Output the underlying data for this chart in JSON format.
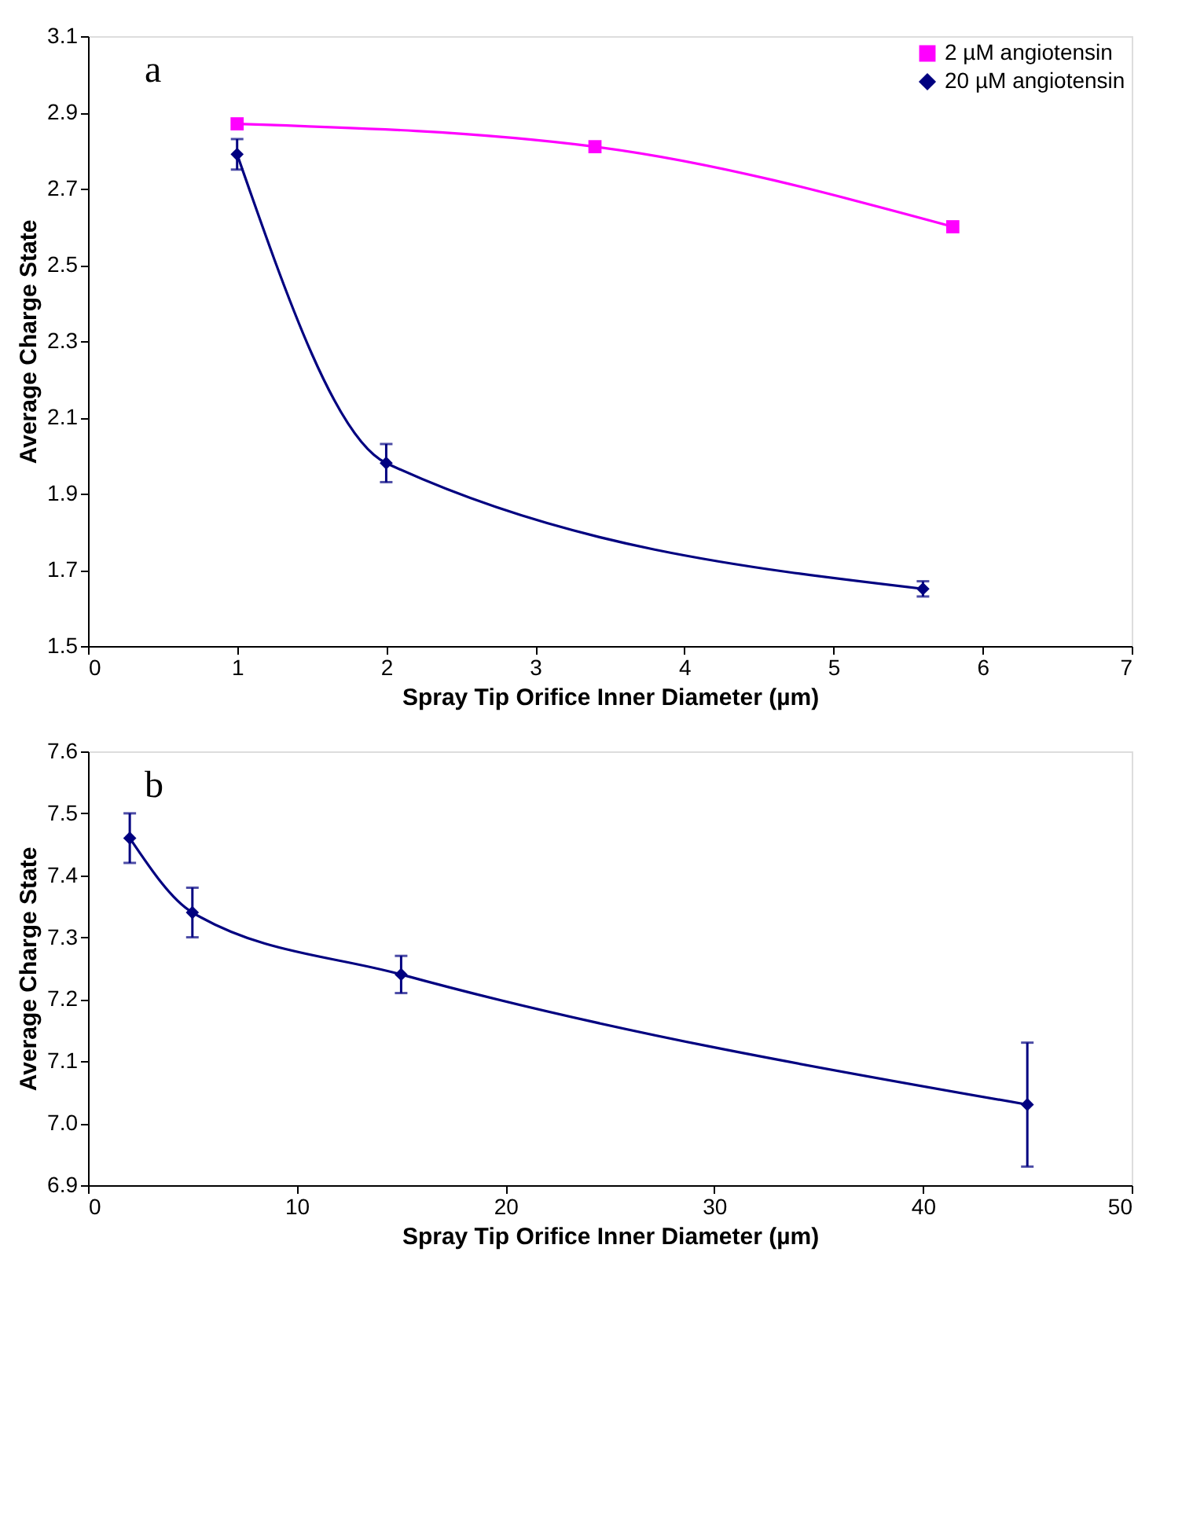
{
  "chart_data": [
    {
      "type": "line",
      "xlabel": "Spray Tip Orifice Inner Diameter (µm)",
      "ylabel": "Average Charge State",
      "annotations": [
        "a"
      ],
      "xlim": [
        0,
        7
      ],
      "xticks": [
        0,
        1,
        2,
        3,
        4,
        5,
        6,
        7
      ],
      "ylim": [
        1.5,
        3.1
      ],
      "yticks": [
        1.5,
        1.7,
        1.9,
        2.1,
        2.3,
        2.5,
        2.7,
        2.9,
        3.1
      ],
      "grid": false,
      "legend": "top right",
      "series": [
        {
          "name": "2 µM angiotensin",
          "color": "#ff00ff",
          "marker": "square",
          "x": [
            1,
            3.4,
            5.8
          ],
          "values": [
            2.87,
            2.81,
            2.6
          ]
        },
        {
          "name": "20 µM angiotensin",
          "color": "#000080",
          "marker": "diamond",
          "x": [
            1,
            2,
            5.6
          ],
          "values": [
            2.79,
            1.98,
            1.65
          ],
          "errors": [
            0.04,
            0.05,
            0.02
          ]
        }
      ]
    },
    {
      "type": "line",
      "xlabel": "Spray Tip Orifice Inner Diameter (µm)",
      "ylabel": "Average Charge State",
      "annotations": [
        "b"
      ],
      "xlim": [
        0,
        50
      ],
      "xticks": [
        0,
        10,
        20,
        30,
        40,
        50
      ],
      "ylim": [
        6.9,
        7.6
      ],
      "yticks": [
        {
          "value": 6.9,
          "label": "6.9"
        },
        {
          "value": 7.0,
          "label": "7.0"
        },
        {
          "value": 7.1,
          "label": "7.1"
        },
        {
          "value": 7.2,
          "label": "7.2"
        },
        {
          "value": 7.3,
          "label": "7.3"
        },
        {
          "value": 7.4,
          "label": "7.4"
        },
        {
          "value": 7.5,
          "label": "7.5"
        },
        {
          "value": 7.6,
          "label": "7.6"
        }
      ],
      "grid": false,
      "series": [
        {
          "color": "#000080",
          "marker": "diamond",
          "x": [
            2,
            5,
            15,
            45
          ],
          "values": [
            7.46,
            7.34,
            7.24,
            7.03
          ],
          "errors": [
            0.04,
            0.04,
            0.03,
            0.1
          ]
        }
      ]
    }
  ]
}
